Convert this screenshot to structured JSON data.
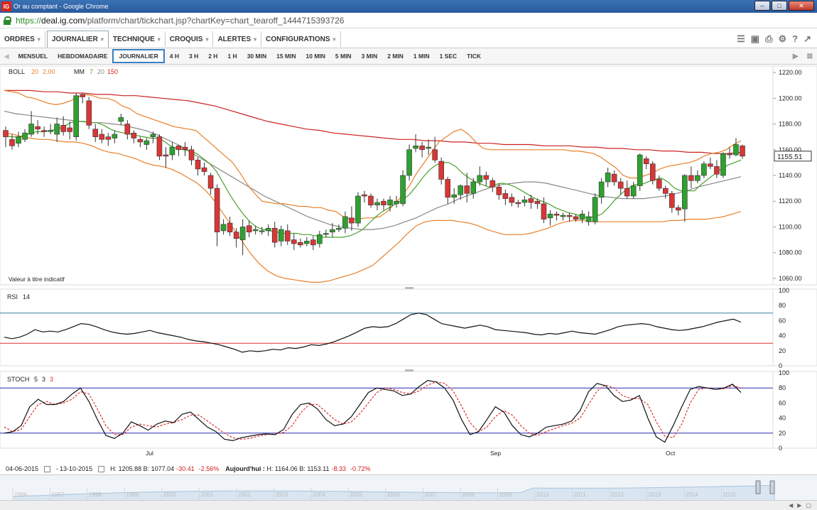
{
  "window": {
    "title": "Or au comptant - Google Chrome",
    "logo": "IG"
  },
  "address": {
    "scheme": "https://",
    "host": "deal.ig.com",
    "path": "/platform/chart/tickchart.jsp?chartKey=chart_tearoff_1444715393726"
  },
  "menu": [
    {
      "label": "ORDRES"
    },
    {
      "label": "JOURNALIER"
    },
    {
      "label": "TECHNIQUE"
    },
    {
      "label": "CROQUIS"
    },
    {
      "label": "ALERTES"
    },
    {
      "label": "CONFIGURATIONS"
    }
  ],
  "toolbar_icons": [
    "layers-icon",
    "image-icon",
    "print-icon",
    "gear-icon",
    "help-icon",
    "popout-icon"
  ],
  "timeframes": [
    "MENSUEL",
    "HEBDOMADAIRE",
    "JOURNALIER",
    "4 H",
    "3 H",
    "2 H",
    "1 H",
    "30 MIN",
    "15 MIN",
    "10 MIN",
    "5 MIN",
    "3 MIN",
    "2 MIN",
    "1 MIN",
    "1 SEC",
    "TICK"
  ],
  "selected_timeframe": "JOURNALIER",
  "legend": {
    "boll": "BOLL",
    "boll_p1": "20",
    "boll_p2": "2.00",
    "mm": "MM",
    "mm_p1": "7",
    "mm_p2": "20",
    "mm_p3": "150",
    "rsi": "RSI",
    "rsi_p": "14",
    "stoch": "STOCH",
    "stoch_p1": "5",
    "stoch_p2": "3",
    "stoch_p3": "3"
  },
  "note": "Valeur à titre indicatif",
  "price_axis": [
    "1220.00",
    "1200.00",
    "1180.00",
    "1160.00",
    "1140.00",
    "1120.00",
    "1100.00",
    "1080.00",
    "1060.00"
  ],
  "current_price": "1155.51",
  "rsi_axis": [
    "100",
    "80",
    "60",
    "40",
    "20",
    "0"
  ],
  "stoch_axis": [
    "100",
    "80",
    "60",
    "40",
    "20",
    "0"
  ],
  "x_labels": [
    "Jul",
    "Sep",
    "Oct"
  ],
  "stats": {
    "from": "04-06-2015",
    "to": "13-10-2015",
    "high": "H: 1205.88",
    "low": "B: 1077.04",
    "chg": "-30.41",
    "chg_pct": "-2.56%",
    "today_label": "Aujourd'hui :",
    "today_high": "H: 1164.06",
    "today_low": "B: 1153.11",
    "today_chg": "-8.33",
    "today_pct": "-0.72%"
  },
  "navigator_years": [
    "1996",
    "1997",
    "1998",
    "1999",
    "2000",
    "2001",
    "2002",
    "2003",
    "2004",
    "2005",
    "2006",
    "2007",
    "2008",
    "2009",
    "2010",
    "2011",
    "2012",
    "2013",
    "2014",
    "2015"
  ],
  "colors": {
    "up": "#2ea12e",
    "down": "#d93636",
    "boll": "#e8802a",
    "ma7": "#4aa02c",
    "ma20": "#888888",
    "ma150": "#cc2222",
    "rsi_upper": "#3b7ea0",
    "rsi_lower": "#e03030",
    "stoch_band": "#2b2bb0"
  },
  "chart_data": {
    "type": "candlestick",
    "ylim": [
      1055,
      1225
    ],
    "candles": [
      [
        1175,
        1170,
        1178,
        1162
      ],
      [
        1168,
        1163,
        1172,
        1160
      ],
      [
        1165,
        1170,
        1174,
        1162
      ],
      [
        1168,
        1173,
        1176,
        1166
      ],
      [
        1172,
        1180,
        1190,
        1170
      ],
      [
        1178,
        1176,
        1183,
        1172
      ],
      [
        1175,
        1174,
        1178,
        1170
      ],
      [
        1174,
        1175,
        1180,
        1172
      ],
      [
        1172,
        1180,
        1185,
        1166
      ],
      [
        1179,
        1174,
        1186,
        1171
      ],
      [
        1177,
        1174,
        1182,
        1168
      ],
      [
        1170,
        1202,
        1204,
        1167
      ],
      [
        1203,
        1201,
        1204,
        1196
      ],
      [
        1198,
        1179,
        1201,
        1176
      ],
      [
        1176,
        1170,
        1180,
        1166
      ],
      [
        1172,
        1168,
        1176,
        1165
      ],
      [
        1170,
        1168,
        1173,
        1163
      ],
      [
        1169,
        1172,
        1175,
        1165
      ],
      [
        1182,
        1185,
        1188,
        1179
      ],
      [
        1180,
        1172,
        1183,
        1168
      ],
      [
        1173,
        1169,
        1175,
        1165
      ],
      [
        1168,
        1166,
        1170,
        1162
      ],
      [
        1164,
        1167,
        1169,
        1160
      ],
      [
        1170,
        1172,
        1174,
        1165
      ],
      [
        1170,
        1155,
        1172,
        1152
      ],
      [
        1156,
        1155,
        1162,
        1146
      ],
      [
        1156,
        1162,
        1166,
        1152
      ],
      [
        1163,
        1160,
        1164,
        1155
      ],
      [
        1162,
        1160,
        1166,
        1155
      ],
      [
        1160,
        1152,
        1163,
        1148
      ],
      [
        1152,
        1145,
        1154,
        1140
      ],
      [
        1146,
        1143,
        1150,
        1140
      ],
      [
        1140,
        1130,
        1142,
        1125
      ],
      [
        1130,
        1096,
        1133,
        1085
      ],
      [
        1097,
        1102,
        1106,
        1094
      ],
      [
        1103,
        1096,
        1108,
        1093
      ],
      [
        1096,
        1091,
        1099,
        1084
      ],
      [
        1090,
        1100,
        1106,
        1078
      ],
      [
        1101,
        1096,
        1105,
        1092
      ],
      [
        1097,
        1098,
        1101,
        1094
      ],
      [
        1097,
        1097,
        1100,
        1094
      ],
      [
        1097,
        1099,
        1102,
        1093
      ],
      [
        1099,
        1088,
        1104,
        1084
      ],
      [
        1089,
        1098,
        1101,
        1085
      ],
      [
        1097,
        1089,
        1102,
        1086
      ],
      [
        1090,
        1087,
        1095,
        1082
      ],
      [
        1088,
        1086,
        1091,
        1084
      ],
      [
        1087,
        1089,
        1092,
        1085
      ],
      [
        1090,
        1086,
        1093,
        1082
      ],
      [
        1087,
        1094,
        1097,
        1084
      ],
      [
        1095,
        1095,
        1098,
        1092
      ],
      [
        1096,
        1098,
        1103,
        1092
      ],
      [
        1098,
        1099,
        1102,
        1096
      ],
      [
        1099,
        1108,
        1112,
        1095
      ],
      [
        1107,
        1103,
        1116,
        1097
      ],
      [
        1103,
        1124,
        1127,
        1100
      ],
      [
        1125,
        1124,
        1128,
        1119
      ],
      [
        1124,
        1117,
        1126,
        1115
      ],
      [
        1117,
        1119,
        1122,
        1113
      ],
      [
        1120,
        1117,
        1122,
        1113
      ],
      [
        1117,
        1121,
        1124,
        1112
      ],
      [
        1118,
        1120,
        1124,
        1115
      ],
      [
        1118,
        1140,
        1144,
        1116
      ],
      [
        1140,
        1160,
        1164,
        1136
      ],
      [
        1161,
        1163,
        1172,
        1158
      ],
      [
        1163,
        1160,
        1166,
        1154
      ],
      [
        1161,
        1162,
        1168,
        1156
      ],
      [
        1160,
        1152,
        1170,
        1150
      ],
      [
        1151,
        1137,
        1154,
        1133
      ],
      [
        1137,
        1123,
        1139,
        1118
      ],
      [
        1123,
        1125,
        1130,
        1118
      ],
      [
        1125,
        1132,
        1133,
        1121
      ],
      [
        1132,
        1126,
        1142,
        1119
      ],
      [
        1126,
        1135,
        1138,
        1122
      ],
      [
        1135,
        1140,
        1147,
        1132
      ],
      [
        1140,
        1137,
        1143,
        1132
      ],
      [
        1136,
        1131,
        1138,
        1127
      ],
      [
        1131,
        1125,
        1134,
        1121
      ],
      [
        1126,
        1122,
        1129,
        1117
      ],
      [
        1123,
        1119,
        1126,
        1116
      ],
      [
        1119,
        1118,
        1121,
        1115
      ],
      [
        1119,
        1121,
        1124,
        1116
      ],
      [
        1122,
        1119,
        1125,
        1114
      ],
      [
        1120,
        1118,
        1122,
        1114
      ],
      [
        1118,
        1106,
        1123,
        1103
      ],
      [
        1107,
        1110,
        1113,
        1101
      ],
      [
        1110,
        1109,
        1112,
        1105
      ],
      [
        1108,
        1109,
        1111,
        1105
      ],
      [
        1109,
        1108,
        1111,
        1104
      ],
      [
        1108,
        1106,
        1110,
        1104
      ],
      [
        1106,
        1110,
        1113,
        1103
      ],
      [
        1104,
        1108,
        1112,
        1101
      ],
      [
        1104,
        1123,
        1126,
        1102
      ],
      [
        1123,
        1135,
        1138,
        1118
      ],
      [
        1135,
        1142,
        1146,
        1131
      ],
      [
        1141,
        1135,
        1144,
        1132
      ],
      [
        1135,
        1130,
        1138,
        1125
      ],
      [
        1130,
        1124,
        1136,
        1122
      ],
      [
        1124,
        1132,
        1135,
        1122
      ],
      [
        1132,
        1156,
        1157,
        1128
      ],
      [
        1153,
        1149,
        1155,
        1145
      ],
      [
        1149,
        1136,
        1151,
        1133
      ],
      [
        1137,
        1130,
        1140,
        1128
      ],
      [
        1130,
        1126,
        1132,
        1122
      ],
      [
        1126,
        1115,
        1128,
        1111
      ],
      [
        1115,
        1113,
        1117,
        1109
      ],
      [
        1114,
        1140,
        1141,
        1104
      ],
      [
        1140,
        1136,
        1147,
        1130
      ],
      [
        1136,
        1140,
        1144,
        1134
      ],
      [
        1140,
        1149,
        1151,
        1138
      ],
      [
        1149,
        1147,
        1154,
        1145
      ],
      [
        1147,
        1141,
        1152,
        1138
      ],
      [
        1140,
        1157,
        1158,
        1138
      ],
      [
        1157,
        1156,
        1162,
        1153
      ],
      [
        1156,
        1164,
        1169,
        1155
      ],
      [
        1163,
        1155,
        1164,
        1153
      ]
    ],
    "boll_upper": [
      1206,
      1205,
      1204,
      1201,
      1200,
      1198,
      1196,
      1195,
      1196,
      1198,
      1201,
      1203,
      1202,
      1200,
      1200,
      1198,
      1194,
      1192,
      1188,
      1186,
      1184,
      1182,
      1180,
      1178,
      1177,
      1176,
      1175,
      1170,
      1165,
      1160,
      1155,
      1150,
      1142,
      1133,
      1126,
      1120,
      1119,
      1118,
      1118,
      1117,
      1116,
      1116,
      1115,
      1115,
      1113,
      1112,
      1108,
      1106,
      1106,
      1107,
      1107,
      1108,
      1112,
      1118,
      1124,
      1132,
      1142,
      1150,
      1158,
      1166,
      1170,
      1174,
      1176,
      1172,
      1166,
      1161,
      1160,
      1160,
      1160,
      1160,
      1160,
      1160,
      1160,
      1160,
      1160,
      1160,
      1160,
      1159,
      1159,
      1158,
      1157,
      1154,
      1150,
      1146,
      1140,
      1138,
      1138,
      1140,
      1142,
      1145,
      1147,
      1148,
      1149,
      1150,
      1152,
      1155,
      1157,
      1158,
      1160,
      1164,
      1167
    ],
    "boll_lower": [
      1173,
      1172,
      1170,
      1169,
      1168,
      1168,
      1167,
      1166,
      1166,
      1165,
      1163,
      1160,
      1158,
      1157,
      1155,
      1153,
      1150,
      1148,
      1147,
      1145,
      1142,
      1138,
      1134,
      1128,
      1120,
      1110,
      1100,
      1090,
      1080,
      1072,
      1066,
      1062,
      1060,
      1059,
      1058,
      1057,
      1057,
      1058,
      1060,
      1062,
      1064,
      1067,
      1070,
      1076,
      1082,
      1088,
      1095,
      1101,
      1104,
      1105,
      1105,
      1105,
      1104,
      1103,
      1101,
      1098,
      1096,
      1094,
      1094,
      1094,
      1095,
      1097,
      1099,
      1102,
      1104,
      1105,
      1105,
      1104,
      1104,
      1104,
      1104,
      1104,
      1104,
      1104,
      1104,
      1104,
      1105,
      1105,
      1106,
      1106,
      1106,
      1107,
      1108,
      1110,
      1112
    ],
    "ma7": [
      1171,
      1170,
      1170,
      1171,
      1173,
      1174,
      1174,
      1175,
      1176,
      1178,
      1181,
      1182,
      1182,
      1181,
      1181,
      1179,
      1176,
      1174,
      1173,
      1172,
      1171,
      1170,
      1169,
      1169,
      1167,
      1163,
      1161,
      1160,
      1159,
      1157,
      1153,
      1149,
      1143,
      1134,
      1125,
      1117,
      1110,
      1104,
      1100,
      1098,
      1097,
      1096,
      1095,
      1095,
      1095,
      1094,
      1094,
      1093,
      1092,
      1092,
      1092,
      1092,
      1093,
      1095,
      1098,
      1103,
      1108,
      1112,
      1115,
      1118,
      1121,
      1125,
      1131,
      1138,
      1144,
      1148,
      1150,
      1150,
      1147,
      1142,
      1138,
      1135,
      1133,
      1131,
      1133,
      1134,
      1133,
      1131,
      1128,
      1125,
      1122,
      1120,
      1118,
      1115,
      1113,
      1111,
      1110,
      1108,
      1107,
      1108,
      1110,
      1115,
      1121,
      1126,
      1130,
      1133,
      1133,
      1135,
      1137,
      1138,
      1135,
      1130,
      1128,
      1128,
      1128,
      1133,
      1137,
      1141,
      1145,
      1148,
      1150,
      1152
    ],
    "ma20": [
      1190,
      1188,
      1187,
      1186,
      1185,
      1184,
      1183,
      1182,
      1181,
      1181,
      1180,
      1179,
      1177,
      1175,
      1172,
      1168,
      1164,
      1159,
      1154,
      1149,
      1144,
      1139,
      1134,
      1129,
      1124,
      1120,
      1116,
      1112,
      1108,
      1105,
      1102,
      1100,
      1099,
      1098,
      1098,
      1099,
      1101,
      1104,
      1107,
      1111,
      1115,
      1118,
      1122,
      1125,
      1128,
      1131,
      1133,
      1134,
      1135,
      1135,
      1134,
      1132,
      1130,
      1128,
      1126,
      1124,
      1123,
      1122,
      1122,
      1122,
      1123,
      1124,
      1126,
      1128,
      1131,
      1133,
      1135,
      1137,
      1139
    ],
    "ma150": [
      1206,
      1206,
      1206,
      1205,
      1205,
      1204,
      1204,
      1203,
      1203,
      1202,
      1202,
      1201,
      1200,
      1199,
      1198,
      1196,
      1194,
      1191,
      1188,
      1185,
      1182,
      1180,
      1178,
      1176,
      1175,
      1173,
      1172,
      1171,
      1170,
      1169,
      1168,
      1168,
      1167,
      1167,
      1166,
      1166,
      1165,
      1165,
      1164,
      1164,
      1164,
      1163,
      1163,
      1163,
      1162,
      1162,
      1161,
      1161,
      1160,
      1160,
      1159,
      1159,
      1158,
      1158,
      1157,
      1157,
      1158
    ],
    "rsi": [
      38,
      36,
      38,
      42,
      48,
      45,
      46,
      45,
      48,
      52,
      56,
      55,
      52,
      48,
      45,
      43,
      42,
      43,
      45,
      47,
      44,
      42,
      40,
      38,
      35,
      33,
      32,
      30,
      28,
      25,
      22,
      18,
      20,
      19,
      20,
      22,
      21,
      24,
      23,
      25,
      28,
      27,
      29,
      32,
      36,
      40,
      45,
      50,
      52,
      51,
      52,
      56,
      62,
      68,
      70,
      68,
      62,
      56,
      54,
      52,
      50,
      52,
      54,
      52,
      48,
      47,
      46,
      45,
      44,
      42,
      41,
      43,
      42,
      44,
      46,
      44,
      43,
      42,
      45,
      48,
      52,
      54,
      55,
      56,
      55,
      52,
      50,
      48,
      47,
      48,
      50,
      52,
      55,
      58,
      60,
      62,
      58
    ],
    "rsi_levels": [
      70,
      30
    ],
    "stoch_k": [
      20,
      22,
      30,
      55,
      65,
      58,
      58,
      62,
      72,
      80,
      62,
      38,
      17,
      13,
      20,
      35,
      30,
      24,
      32,
      36,
      34,
      45,
      48,
      38,
      28,
      22,
      12,
      10,
      14,
      16,
      18,
      19,
      18,
      25,
      45,
      58,
      60,
      52,
      38,
      30,
      32,
      42,
      58,
      74,
      80,
      78,
      76,
      70,
      72,
      82,
      90,
      88,
      80,
      64,
      38,
      18,
      22,
      38,
      55,
      48,
      30,
      18,
      15,
      20,
      28,
      30,
      32,
      36,
      50,
      75,
      86,
      83,
      70,
      62,
      64,
      70,
      40,
      15,
      8,
      30,
      55,
      78,
      82,
      80,
      78,
      80,
      85,
      74
    ],
    "stoch_d": [
      28,
      22,
      25,
      42,
      58,
      62,
      58,
      60,
      65,
      75,
      72,
      52,
      30,
      18,
      18,
      28,
      32,
      30,
      28,
      32,
      34,
      38,
      44,
      44,
      36,
      28,
      20,
      14,
      12,
      13,
      16,
      18,
      19,
      21,
      30,
      47,
      58,
      58,
      48,
      38,
      32,
      35,
      46,
      60,
      74,
      80,
      78,
      74,
      72,
      76,
      84,
      88,
      86,
      76,
      56,
      34,
      22,
      28,
      42,
      50,
      44,
      30,
      20,
      17,
      22,
      26,
      30,
      33,
      40,
      58,
      76,
      84,
      80,
      70,
      66,
      66,
      58,
      35,
      16,
      14,
      32,
      60,
      78,
      80,
      78,
      79,
      83,
      80
    ]
  }
}
